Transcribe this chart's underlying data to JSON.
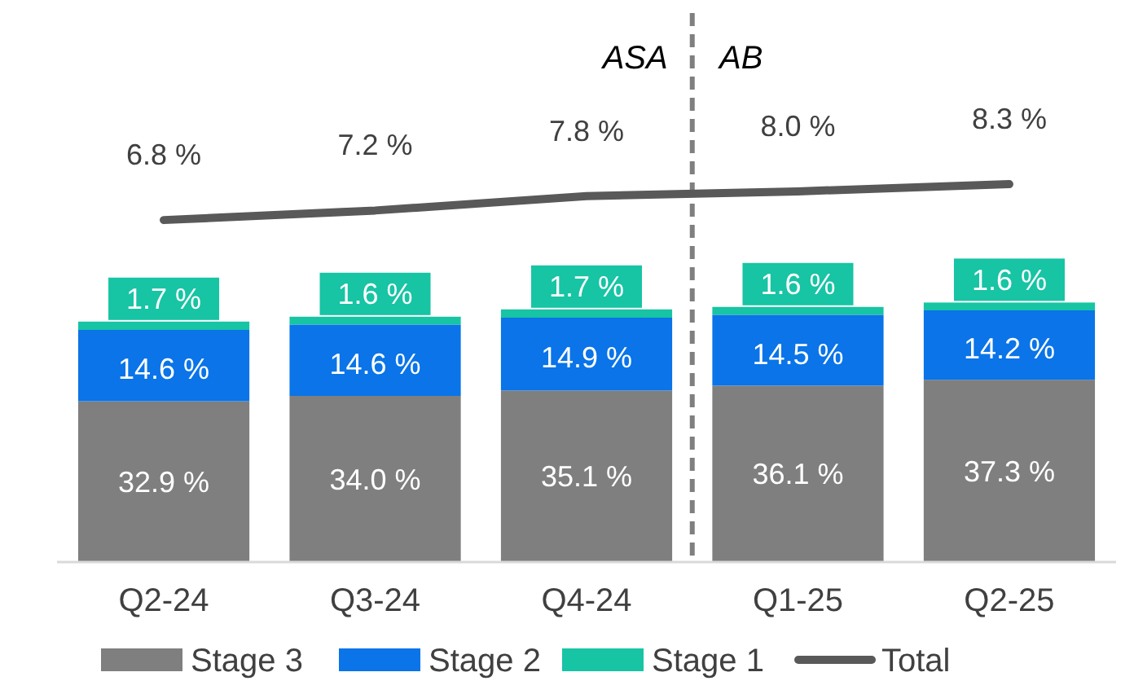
{
  "chart_data": {
    "type": "bar",
    "stacked": true,
    "categories": [
      "Q2-24",
      "Q3-24",
      "Q4-24",
      "Q1-25",
      "Q2-25"
    ],
    "ylim": [
      0,
      115
    ],
    "y2lim": [
      -7.5,
      16
    ],
    "tick_labels": "x",
    "legend": "bottom",
    "series": [
      {
        "name": "Stage 3",
        "color": "#7f7f7f",
        "values": [
          32.9,
          34.0,
          35.1,
          36.1,
          37.3
        ],
        "value_labels": [
          "32.9 %",
          "34.0 %",
          "35.1 %",
          "36.1 %",
          "37.3 %"
        ]
      },
      {
        "name": "Stage 2",
        "color": "#0a74e8",
        "values": [
          14.6,
          14.6,
          14.9,
          14.5,
          14.2
        ],
        "value_labels": [
          "14.6 %",
          "14.6 %",
          "14.9 %",
          "14.5 %",
          "14.2 %"
        ]
      },
      {
        "name": "Stage 1",
        "color": "#17c4a4",
        "values": [
          1.7,
          1.6,
          1.7,
          1.6,
          1.6
        ],
        "value_labels": [
          "1.7 %",
          "1.6 %",
          "1.7 %",
          "1.6 %",
          "1.6 %"
        ]
      },
      {
        "name": "Total",
        "type": "line",
        "axis": "y2",
        "color": "#595959",
        "values": [
          6.8,
          7.2,
          7.8,
          8.0,
          8.3
        ],
        "value_labels": [
          "6.8 %",
          "7.2 %",
          "7.8 %",
          "8.0 %",
          "8.3 %"
        ]
      }
    ],
    "annotations": [
      "ASA",
      "AB"
    ]
  }
}
